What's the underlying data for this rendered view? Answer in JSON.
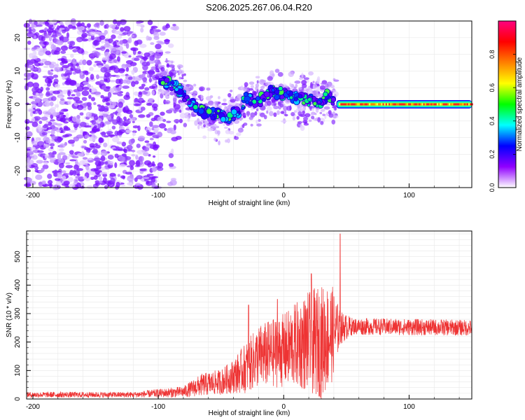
{
  "page": {
    "title": "S206.2025.267.06.04.R20"
  },
  "chart_data": [
    {
      "type": "heatmap",
      "title": "S206.2025.267.06.04.R20",
      "xlabel": "Height of straight line (km)",
      "ylabel": "Frequency (Hz)",
      "xlim": [
        -205,
        150
      ],
      "ylim": [
        -25,
        25
      ],
      "xticks": [
        -200,
        -100,
        0,
        100
      ],
      "yticks": [
        -20,
        -10,
        0,
        10,
        20
      ],
      "colorbar": {
        "label": "Normalized spectral amplitude",
        "ticks": [
          0.0,
          0.2,
          0.4,
          0.6,
          0.8
        ],
        "range": [
          0.0,
          1.0
        ],
        "stops": [
          "#ffffff",
          "#9000ff",
          "#0000ff",
          "#00ffff",
          "#00ff00",
          "#ffff00",
          "#ff8000",
          "#ff0000",
          "#ff0080"
        ]
      },
      "ridge": [
        {
          "x": -100,
          "y": 8
        },
        {
          "x": -85,
          "y": 5
        },
        {
          "x": -75,
          "y": 1
        },
        {
          "x": -65,
          "y": -2
        },
        {
          "x": -55,
          "y": -3
        },
        {
          "x": -45,
          "y": -4
        },
        {
          "x": -35,
          "y": -2
        },
        {
          "x": -30,
          "y": 2
        },
        {
          "x": -20,
          "y": 1
        },
        {
          "x": -10,
          "y": 4
        },
        {
          "x": 0,
          "y": 3
        },
        {
          "x": 10,
          "y": 2
        },
        {
          "x": 20,
          "y": 1
        },
        {
          "x": 30,
          "y": 1
        },
        {
          "x": 35,
          "y": 3
        },
        {
          "x": 42,
          "y": 0
        },
        {
          "x": 150,
          "y": 0
        }
      ],
      "carrier": {
        "x_start": 42,
        "x_end": 150,
        "y": 0
      }
    },
    {
      "type": "line",
      "xlabel": "Height of straight line (km)",
      "ylabel": "SNR (10 * v/v)",
      "xlim": [
        -205,
        150
      ],
      "ylim": [
        0,
        590
      ],
      "xticks": [
        -200,
        -100,
        0,
        100
      ],
      "yticks": [
        0,
        100,
        200,
        300,
        400,
        500
      ],
      "color": "#ee3333",
      "envelope": [
        {
          "x": -205,
          "mean": 15,
          "spread": 10
        },
        {
          "x": -120,
          "mean": 15,
          "spread": 10
        },
        {
          "x": -80,
          "mean": 25,
          "spread": 20
        },
        {
          "x": -65,
          "mean": 50,
          "spread": 40
        },
        {
          "x": -50,
          "mean": 60,
          "spread": 45
        },
        {
          "x": -40,
          "mean": 80,
          "spread": 60
        },
        {
          "x": -30,
          "mean": 110,
          "spread": 90
        },
        {
          "x": -20,
          "mean": 150,
          "spread": 110
        },
        {
          "x": -10,
          "mean": 160,
          "spread": 120
        },
        {
          "x": 0,
          "mean": 170,
          "spread": 130
        },
        {
          "x": 10,
          "mean": 190,
          "spread": 150
        },
        {
          "x": 20,
          "mean": 200,
          "spread": 180
        },
        {
          "x": 30,
          "mean": 200,
          "spread": 200
        },
        {
          "x": 38,
          "mean": 230,
          "spread": 180
        },
        {
          "x": 45,
          "mean": 250,
          "spread": 60
        },
        {
          "x": 55,
          "mean": 255,
          "spread": 30
        },
        {
          "x": 150,
          "mean": 250,
          "spread": 28
        }
      ],
      "peaks": [
        {
          "x": 45,
          "y": 580
        },
        {
          "x": 22,
          "y": 440
        },
        {
          "x": -28,
          "y": 330
        },
        {
          "x": -5,
          "y": 350
        }
      ]
    }
  ]
}
